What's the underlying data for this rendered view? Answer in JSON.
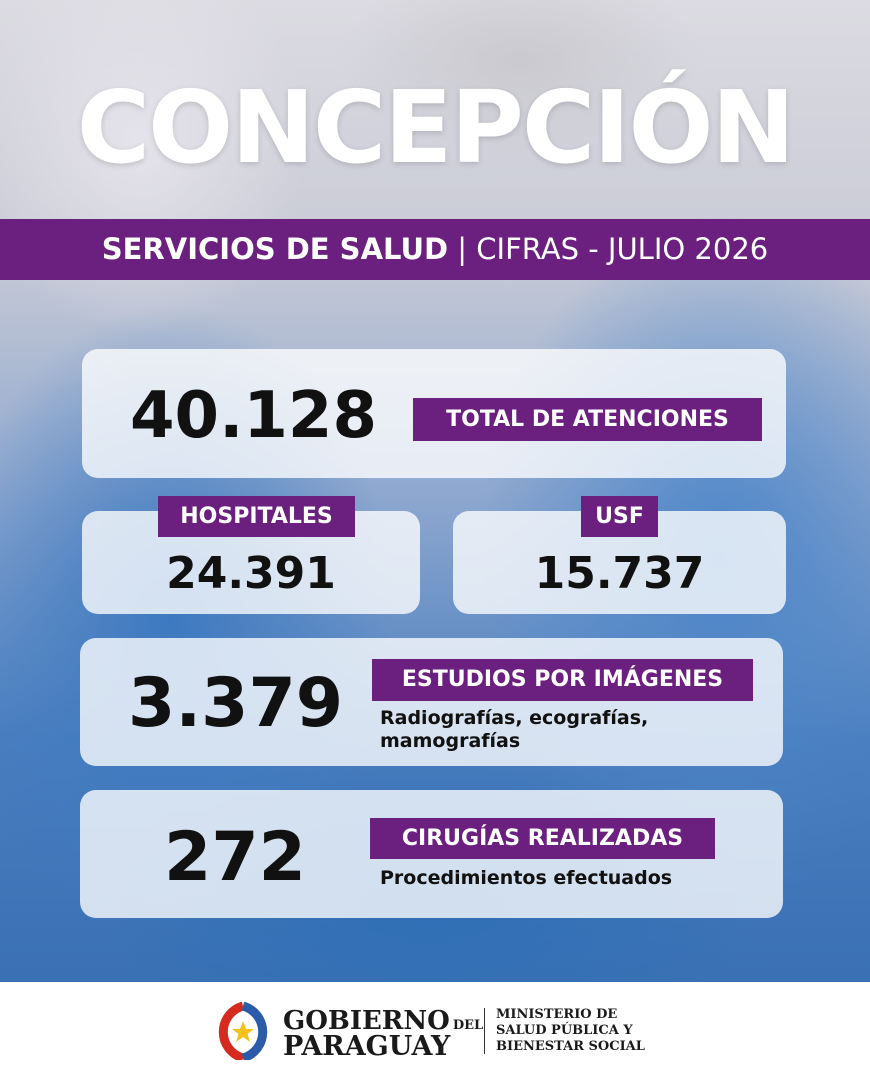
{
  "header": {
    "title": "CONCEPCIÓN",
    "subtitle_bold": "SERVICIOS DE SALUD",
    "separator": "|",
    "subtitle": "CIFRAS - JULIO 2026"
  },
  "total": {
    "value": "40.128",
    "label": "TOTAL DE ATENCIONES"
  },
  "hospitales": {
    "label": "HOSPITALES",
    "value": "24.391"
  },
  "usf": {
    "label": "USF",
    "value": "15.737"
  },
  "imagenes": {
    "value": "3.379",
    "label": "ESTUDIOS POR IMÁGENES",
    "detail_lines": [
      "Radiografías, ecografías,",
      "mamografías"
    ]
  },
  "cirugias": {
    "value": "272",
    "label": "CIRUGÍAS REALIZADAS",
    "detail": "Procedimientos efectuados"
  },
  "footer": {
    "gov_1": "GOBIERNO",
    "gov_del": "DEL",
    "gov_2": "PARAGUAY",
    "ministry_lines": [
      "MINISTERIO DE",
      "SALUD PÚBLICA Y",
      "BIENESTAR SOCIAL"
    ]
  }
}
